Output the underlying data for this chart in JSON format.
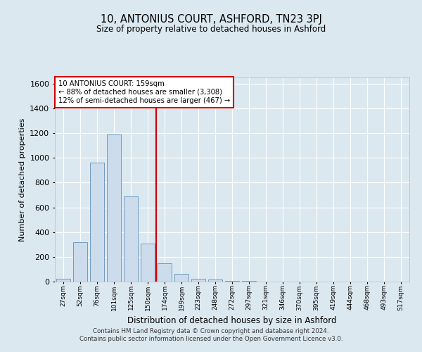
{
  "title": "10, ANTONIUS COURT, ASHFORD, TN23 3PJ",
  "subtitle": "Size of property relative to detached houses in Ashford",
  "xlabel": "Distribution of detached houses by size in Ashford",
  "ylabel": "Number of detached properties",
  "bar_labels": [
    "27sqm",
    "52sqm",
    "76sqm",
    "101sqm",
    "125sqm",
    "150sqm",
    "174sqm",
    "199sqm",
    "223sqm",
    "248sqm",
    "272sqm",
    "297sqm",
    "321sqm",
    "346sqm",
    "370sqm",
    "395sqm",
    "419sqm",
    "444sqm",
    "468sqm",
    "493sqm",
    "517sqm"
  ],
  "bar_values": [
    25,
    320,
    960,
    1190,
    690,
    310,
    150,
    65,
    25,
    15,
    5,
    5,
    2,
    2,
    1,
    1,
    0,
    0,
    0,
    0,
    1
  ],
  "bar_color": "#ccdcec",
  "bar_edge_color": "#6090b8",
  "vline_x": 5.5,
  "vline_color": "#cc0000",
  "annotation_text": "10 ANTONIUS COURT: 159sqm\n← 88% of detached houses are smaller (3,308)\n12% of semi-detached houses are larger (467) →",
  "annotation_box_color": "#ffffff",
  "annotation_box_edge": "#cc0000",
  "ylim": [
    0,
    1650
  ],
  "yticks": [
    0,
    200,
    400,
    600,
    800,
    1000,
    1200,
    1400,
    1600
  ],
  "background_color": "#dce8f0",
  "plot_background": "#dce8f0",
  "grid_color": "#ffffff",
  "footer_line1": "Contains HM Land Registry data © Crown copyright and database right 2024.",
  "footer_line2": "Contains public sector information licensed under the Open Government Licence v3.0."
}
